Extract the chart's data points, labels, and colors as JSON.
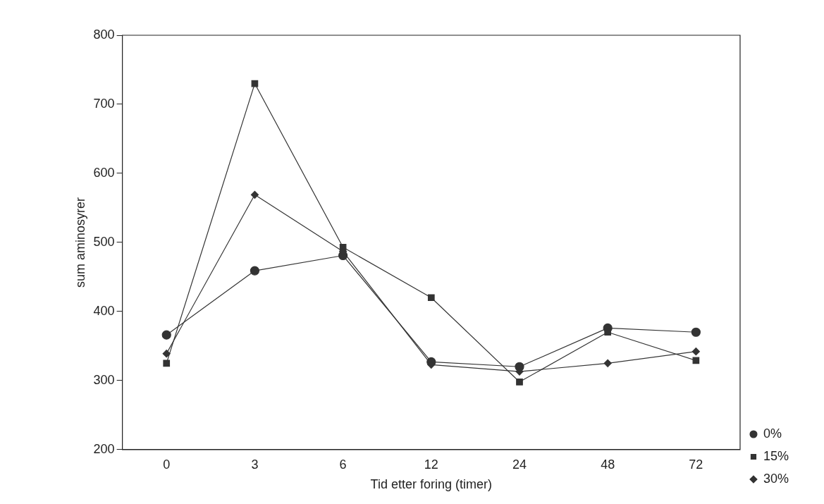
{
  "chart_data": {
    "type": "line",
    "xlabel": "Tid etter foring (timer)",
    "ylabel": "sum aminosyrer",
    "categories": [
      "0",
      "3",
      "6",
      "12",
      "24",
      "48",
      "72"
    ],
    "series": [
      {
        "name": "0%",
        "color": "#333333",
        "marker": "circle",
        "values": [
          366,
          459,
          481,
          327,
          320,
          376,
          370
        ]
      },
      {
        "name": "15%",
        "color": "#333333",
        "marker": "square",
        "values": [
          325,
          730,
          493,
          420,
          298,
          370,
          329
        ]
      },
      {
        "name": "30%",
        "color": "#333333",
        "marker": "diamond",
        "values": [
          339,
          569,
          487,
          323,
          313,
          325,
          342
        ]
      }
    ],
    "ylim": [
      200,
      800
    ],
    "yticks": [
      200,
      300,
      400,
      500,
      600,
      700,
      800
    ],
    "grid": false,
    "legend": "bottom right",
    "line_style": "solid"
  }
}
